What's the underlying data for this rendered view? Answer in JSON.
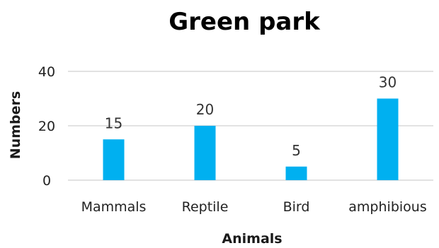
{
  "chart_data": {
    "type": "bar",
    "title": "Green park",
    "xlabel": "Animals",
    "ylabel": "Numbers",
    "categories": [
      "Mammals",
      "Reptile",
      "Bird",
      "amphibious"
    ],
    "values": [
      15,
      20,
      5,
      30
    ],
    "data_labels": [
      "15",
      "20",
      "5",
      "30"
    ],
    "ylim": [
      0,
      40
    ],
    "yticks": [
      0,
      20,
      40
    ],
    "ytick_labels": [
      "0",
      "20",
      "40"
    ],
    "grid": true,
    "legend": "none",
    "bar_color": "#00b0f0"
  }
}
